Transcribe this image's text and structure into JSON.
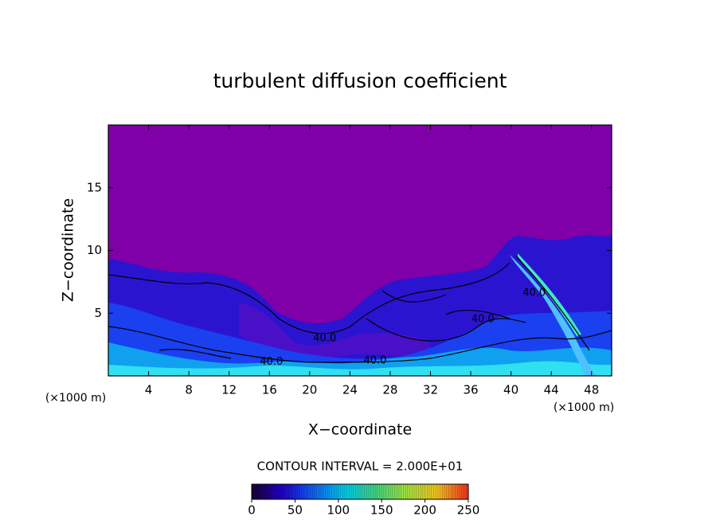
{
  "chart_data": {
    "type": "contour",
    "title": "turbulent diffusion coefficient",
    "xlabel": "X−coordinate",
    "ylabel": "Z−coordinate",
    "x_unit": "(×1000 m)",
    "x_unit_right": "(×1000 m)",
    "xlim": [
      0,
      50
    ],
    "ylim": [
      0,
      20
    ],
    "xticks": [
      4,
      8,
      12,
      16,
      20,
      24,
      28,
      32,
      36,
      40,
      44,
      48
    ],
    "yticks": [
      5,
      10,
      15
    ],
    "contour_interval_text": "CONTOUR INTERVAL = 2.000E+01",
    "contour_labels": [
      {
        "text": "40.0",
        "x": 16.2,
        "y": 1.1
      },
      {
        "text": "40.0",
        "x": 26.5,
        "y": 1.2
      },
      {
        "text": "40.0",
        "x": 37.2,
        "y": 4.5
      },
      {
        "text": "40.0",
        "x": 42.3,
        "y": 6.6
      },
      {
        "text": "40.0",
        "x": 21.5,
        "y": 3.0
      }
    ],
    "clim": [
      0,
      250
    ],
    "cticks": [
      0,
      50,
      100,
      150,
      200,
      250
    ],
    "colormap": [
      "#1a0030",
      "#2000c8",
      "#1060f0",
      "#00c8e8",
      "#40d080",
      "#a0e040",
      "#f0c020",
      "#f03020"
    ],
    "background_color": "#7f00a8"
  }
}
